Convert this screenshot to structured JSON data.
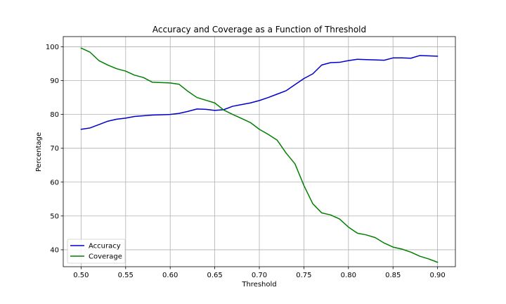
{
  "chart_data": {
    "type": "line",
    "title": "Accuracy and Coverage as a Function of Threshold",
    "xlabel": "Threshold",
    "ylabel": "Percentage",
    "xlim": [
      0.48,
      0.92
    ],
    "ylim": [
      35,
      103
    ],
    "xticks": [
      "0.50",
      "0.55",
      "0.60",
      "0.65",
      "0.70",
      "0.75",
      "0.80",
      "0.85",
      "0.90"
    ],
    "yticks": [
      "40",
      "50",
      "60",
      "70",
      "80",
      "90",
      "100"
    ],
    "grid": true,
    "legend_position": "lower-left",
    "x": [
      0.5,
      0.51,
      0.52,
      0.53,
      0.54,
      0.55,
      0.56,
      0.57,
      0.58,
      0.59,
      0.6,
      0.61,
      0.62,
      0.63,
      0.64,
      0.65,
      0.66,
      0.67,
      0.68,
      0.69,
      0.7,
      0.71,
      0.72,
      0.73,
      0.74,
      0.75,
      0.76,
      0.77,
      0.78,
      0.79,
      0.8,
      0.81,
      0.82,
      0.83,
      0.84,
      0.85,
      0.86,
      0.87,
      0.88,
      0.89,
      0.9
    ],
    "series": [
      {
        "name": "Accuracy",
        "color": "#0000cc",
        "values": [
          75.6,
          76.0,
          77.0,
          78.0,
          78.6,
          78.9,
          79.4,
          79.6,
          79.8,
          79.9,
          80.0,
          80.3,
          80.9,
          81.6,
          81.5,
          81.2,
          81.4,
          82.4,
          82.9,
          83.4,
          84.1,
          85.0,
          86.0,
          87.0,
          88.8,
          90.6,
          92.0,
          94.6,
          95.3,
          95.4,
          95.9,
          96.3,
          96.2,
          96.1,
          96.0,
          96.7,
          96.7,
          96.6,
          97.4,
          97.3,
          97.2
        ]
      },
      {
        "name": "Coverage",
        "color": "#008000",
        "values": [
          99.6,
          98.4,
          95.9,
          94.6,
          93.5,
          92.8,
          91.6,
          90.9,
          89.5,
          89.4,
          89.3,
          88.9,
          86.8,
          85.0,
          84.2,
          83.4,
          81.3,
          80.0,
          78.8,
          77.6,
          75.6,
          74.1,
          72.4,
          68.6,
          65.4,
          59.0,
          53.6,
          50.9,
          50.3,
          49.1,
          46.7,
          44.9,
          44.4,
          43.6,
          42.0,
          40.8,
          40.2,
          39.3,
          38.1,
          37.3,
          36.3
        ]
      }
    ]
  }
}
